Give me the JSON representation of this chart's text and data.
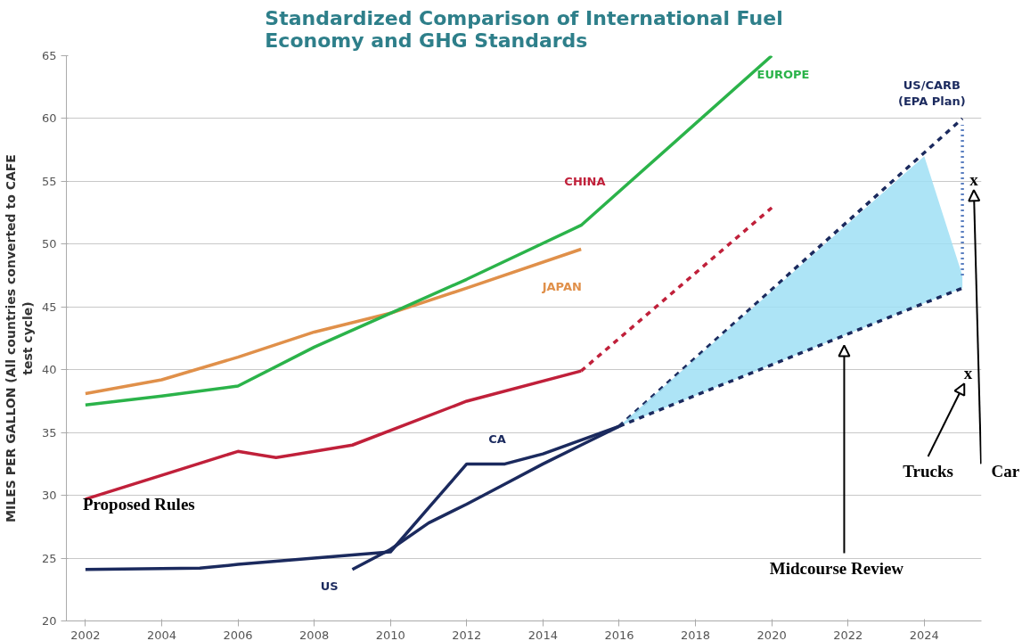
{
  "chart_data": {
    "type": "line",
    "title": "Standardized Comparison of International Fuel\nEconomy and GHG Standards",
    "ylabel": "MILES PER GALLON (All countries converted to CAFE\ntest cycle)",
    "xlim": [
      2001.5,
      2025.5
    ],
    "xticks": [
      2002,
      2004,
      2006,
      2008,
      2010,
      2012,
      2014,
      2016,
      2018,
      2020,
      2022,
      2024
    ],
    "ylim": [
      20,
      65
    ],
    "yticks": [
      20,
      25,
      30,
      35,
      40,
      45,
      50,
      55,
      60,
      65
    ],
    "grid": "y",
    "line_style": "solid",
    "series": [
      {
        "name": "JAPAN",
        "color": "#e0904a",
        "x": [
          2002,
          2004,
          2006,
          2008,
          2010,
          2012,
          2015
        ],
        "values": [
          38.1,
          39.2,
          41,
          43,
          44.5,
          46.5,
          49.6
        ]
      },
      {
        "name": "EUROPE",
        "color": "#2bb34a",
        "x": [
          2002,
          2004,
          2006,
          2008,
          2010,
          2012,
          2015,
          2020
        ],
        "values": [
          37.2,
          37.9,
          38.7,
          41.8,
          44.5,
          47.2,
          51.5,
          65
        ]
      },
      {
        "name": "CHINA",
        "color": "#c0203a",
        "x": [
          2002,
          2004,
          2006,
          2007,
          2009,
          2012,
          2015
        ],
        "values": [
          29.7,
          31.6,
          33.5,
          33,
          34,
          37.5,
          39.9
        ]
      },
      {
        "color": "#c0203a",
        "line_style": "dashed",
        "x": [
          2015,
          2020
        ],
        "values": [
          39.9,
          52.9
        ]
      },
      {
        "name": "CA",
        "color": "#1b2a5e",
        "x": [
          2002,
          2005,
          2006,
          2008,
          2010,
          2011,
          2012,
          2013,
          2014,
          2015,
          2016
        ],
        "values": [
          24.1,
          24.2,
          24.5,
          25,
          25.5,
          29,
          32.5,
          32.5,
          33.3,
          34.4,
          35.5
        ]
      },
      {
        "name": "US",
        "color": "#1b2a5e",
        "x": [
          2009,
          2010,
          2011,
          2012,
          2013,
          2014,
          2015,
          2016
        ],
        "values": [
          24.1,
          25.7,
          27.8,
          29.3,
          30.9,
          32.5,
          34,
          35.5
        ]
      },
      {
        "name": "US/CARB\n(EPA Plan)",
        "color": "#1b2a5e",
        "line_style": "dashed",
        "x": [
          2016,
          2025
        ],
        "values": [
          35.5,
          60
        ]
      },
      {
        "color": "#1b2a5e",
        "line_style": "dashed",
        "x": [
          2016,
          2024,
          2025
        ],
        "values": [
          35.5,
          45.3,
          46.5
        ],
        "lower": [
          35.5,
          45.3,
          46.5
        ],
        "upper": [
          35.5,
          57,
          47.5
        ]
      },
      {
        "color": "#5b7fc0",
        "line_style": "dotted",
        "x": [
          2025,
          2025
        ],
        "values": [
          47.5,
          59.5
        ]
      }
    ],
    "annotations": [
      "Proposed Rules",
      "x",
      "x",
      "Trucks",
      "Car",
      "Midcourse Review"
    ]
  }
}
